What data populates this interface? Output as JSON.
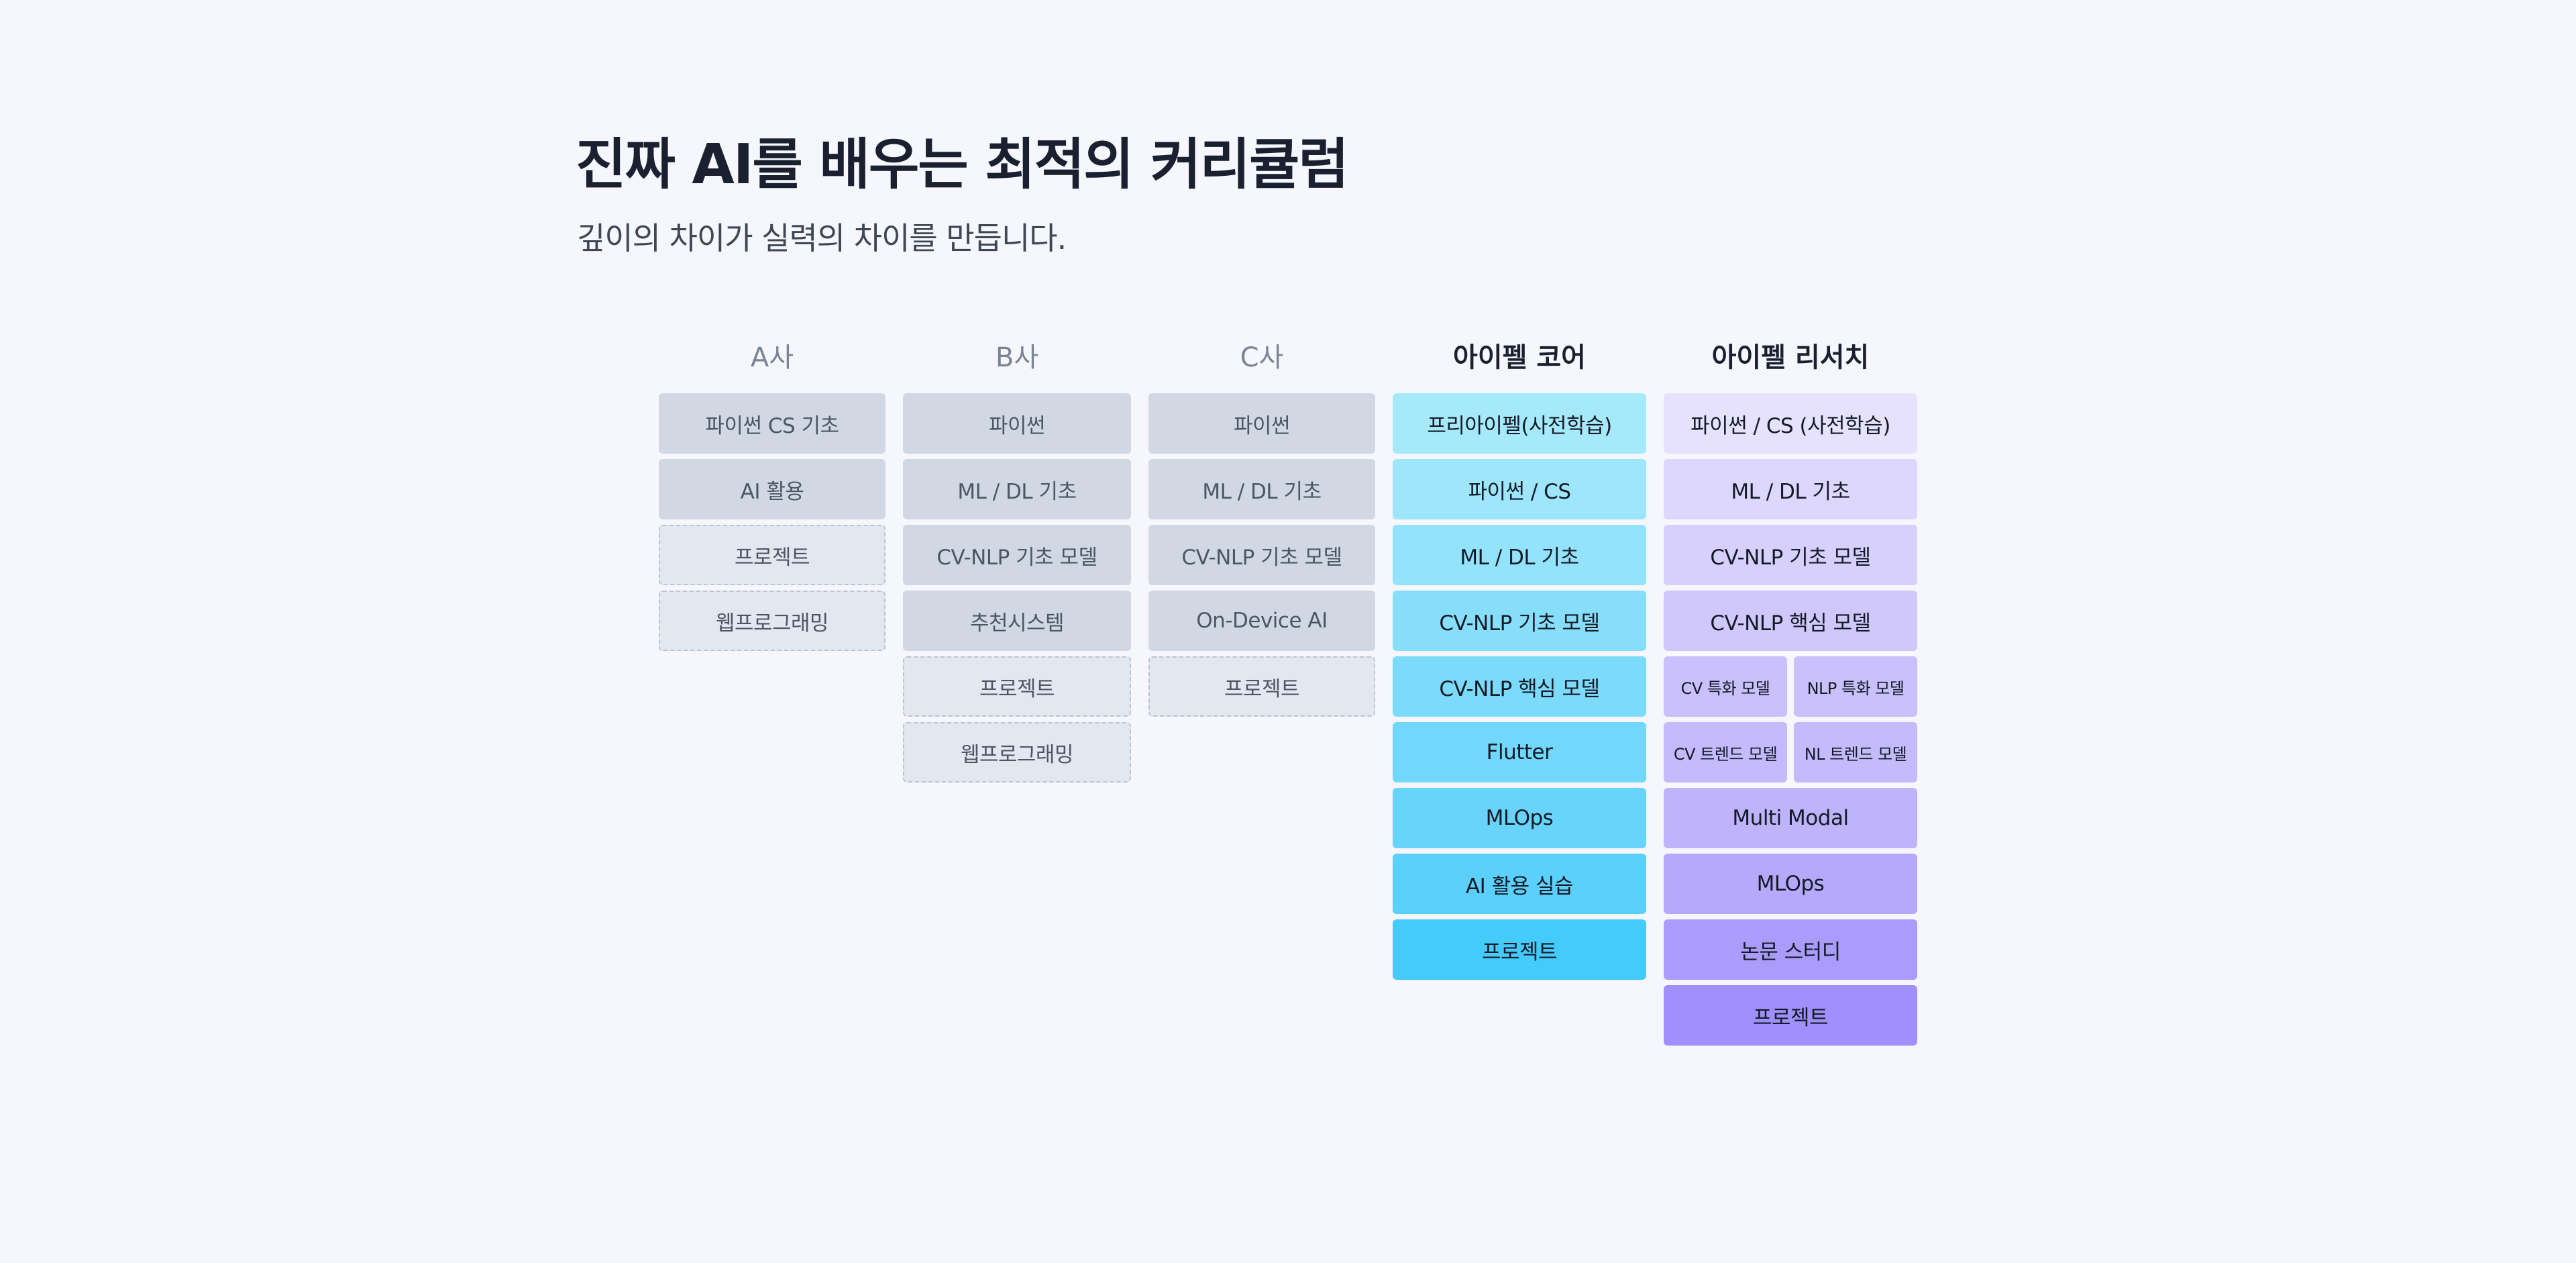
{
  "header": {
    "title": "진짜 AI를 배우는 최적의 커리큘럼",
    "subtitle": "깊이의 차이가 실력의 차이를 만듭니다."
  },
  "columns": [
    {
      "name": "A사",
      "items": [
        {
          "label": "파이썬 CS 기초",
          "style": "solid"
        },
        {
          "label": "AI 활용",
          "style": "solid"
        },
        {
          "label": "프로젝트",
          "style": "dashed"
        },
        {
          "label": "웹프로그래밍",
          "style": "dashed"
        }
      ]
    },
    {
      "name": "B사",
      "items": [
        {
          "label": "파이썬",
          "style": "solid"
        },
        {
          "label": "ML / DL 기초",
          "style": "solid"
        },
        {
          "label": "CV-NLP 기초 모델",
          "style": "solid"
        },
        {
          "label": "추천시스템",
          "style": "solid"
        },
        {
          "label": "프로젝트",
          "style": "dashed"
        },
        {
          "label": "웹프로그래밍",
          "style": "dashed"
        }
      ]
    },
    {
      "name": "C사",
      "items": [
        {
          "label": "파이썬",
          "style": "solid"
        },
        {
          "label": "ML / DL 기초",
          "style": "solid"
        },
        {
          "label": "CV-NLP 기초 모델",
          "style": "solid"
        },
        {
          "label": "On-Device AI",
          "style": "solid"
        },
        {
          "label": "프로젝트",
          "style": "dashed"
        }
      ]
    },
    {
      "name": "아이펠 코어",
      "items": [
        {
          "label": "프리아이펠(사전학습)",
          "color": "#a5e9fb"
        },
        {
          "label": "파이썬 / CS",
          "color": "#9de6fc"
        },
        {
          "label": "ML / DL 기초",
          "color": "#94e3fc"
        },
        {
          "label": "CV-NLP 기초 모델",
          "color": "#86defb"
        },
        {
          "label": "CV-NLP 핵심 모델",
          "color": "#7cdbfb"
        },
        {
          "label": "Flutter",
          "color": "#72d8fb"
        },
        {
          "label": "MLOps",
          "color": "#68d4fb"
        },
        {
          "label": "AI 활용 실습",
          "color": "#5bd0fb"
        },
        {
          "label": "프로젝트",
          "color": "#44cbfb"
        }
      ]
    },
    {
      "name": "아이펠 리서치",
      "items": [
        {
          "label": "파이썬 / CS (사전학습)",
          "color": "#e6e2fd"
        },
        {
          "label": "ML / DL 기초",
          "color": "#ddd7fd"
        },
        {
          "label": "CV-NLP 기초 모델",
          "color": "#d7d0fd"
        },
        {
          "label": "CV-NLP 핵심 모델",
          "color": "#d0c8fc"
        },
        {
          "split": [
            {
              "label": "CV 특화 모델",
              "color": "#c9c0fc"
            },
            {
              "label": "NLP 특화 모델",
              "color": "#c9c0fc"
            }
          ]
        },
        {
          "split": [
            {
              "label": "CV 트렌드 모델",
              "color": "#c4bafc"
            },
            {
              "label": "NL 트렌드 모델",
              "color": "#c4bafc"
            }
          ]
        },
        {
          "label": "Multi Modal",
          "color": "#bfb3fc"
        },
        {
          "label": "MLOps",
          "color": "#b6a9fc"
        },
        {
          "label": "논문 스터디",
          "color": "#ab9cfc"
        },
        {
          "label": "프로젝트",
          "color": "#a08ffc"
        }
      ]
    }
  ]
}
